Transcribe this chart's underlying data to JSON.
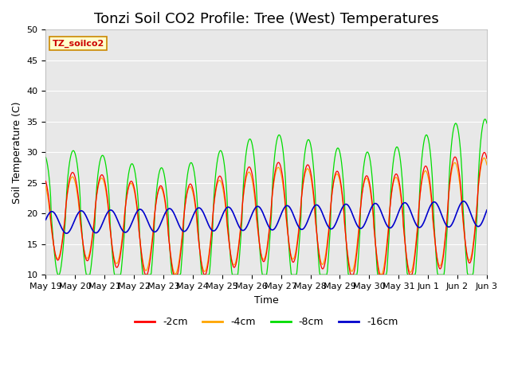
{
  "title": "Tonzi Soil CO2 Profile: Tree (West) Temperatures",
  "ylabel": "Soil Temperature (C)",
  "xlabel": "Time",
  "ylim": [
    10,
    50
  ],
  "legend_label": "TZ_soilco2",
  "series_labels": [
    "-2cm",
    "-4cm",
    "-8cm",
    "-16cm"
  ],
  "series_colors": [
    "#ff0000",
    "#ffa500",
    "#00dd00",
    "#0000cc"
  ],
  "xtick_labels": [
    "May 19",
    "May 20",
    "May 21",
    "May 22",
    "May 23",
    "May 24",
    "May 25",
    "May 26",
    "May 27",
    "May 28",
    "May 29",
    "May 30",
    "May 31",
    "Jun 1",
    "Jun 2",
    "Jun 3"
  ],
  "background_color": "#e8e8e8",
  "figure_color": "#ffffff",
  "grid_color": "#ffffff",
  "title_fontsize": 13,
  "axis_fontsize": 9,
  "tick_fontsize": 8,
  "n_points_per_day": 48,
  "days": 15
}
